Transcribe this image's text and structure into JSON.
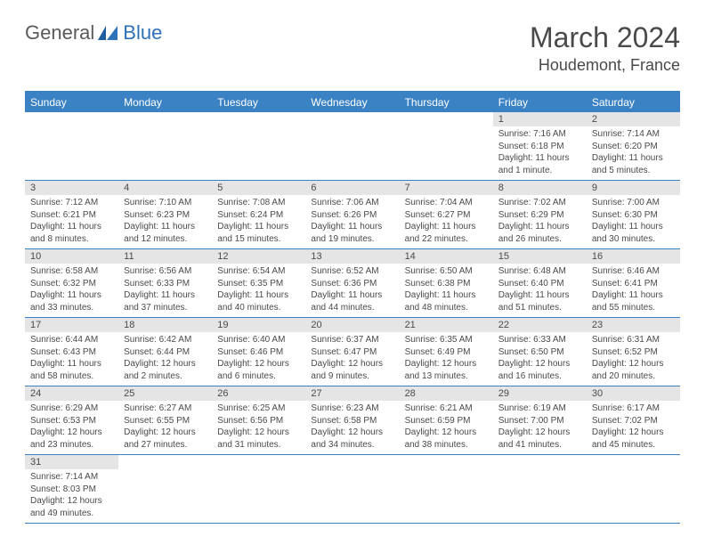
{
  "logo": {
    "general": "General",
    "blue": "Blue"
  },
  "title": "March 2024",
  "location": "Houdemont, France",
  "colors": {
    "header_bg": "#3b82c4",
    "header_text": "#ffffff",
    "daynum_bg": "#e5e5e5",
    "border": "#3b82c4",
    "text": "#4a4a4a"
  },
  "daysOfWeek": [
    "Sunday",
    "Monday",
    "Tuesday",
    "Wednesday",
    "Thursday",
    "Friday",
    "Saturday"
  ],
  "weeks": [
    [
      null,
      null,
      null,
      null,
      null,
      {
        "n": "1",
        "sr": "7:16 AM",
        "ss": "6:18 PM",
        "dl": "11 hours and 1 minute."
      },
      {
        "n": "2",
        "sr": "7:14 AM",
        "ss": "6:20 PM",
        "dl": "11 hours and 5 minutes."
      }
    ],
    [
      {
        "n": "3",
        "sr": "7:12 AM",
        "ss": "6:21 PM",
        "dl": "11 hours and 8 minutes."
      },
      {
        "n": "4",
        "sr": "7:10 AM",
        "ss": "6:23 PM",
        "dl": "11 hours and 12 minutes."
      },
      {
        "n": "5",
        "sr": "7:08 AM",
        "ss": "6:24 PM",
        "dl": "11 hours and 15 minutes."
      },
      {
        "n": "6",
        "sr": "7:06 AM",
        "ss": "6:26 PM",
        "dl": "11 hours and 19 minutes."
      },
      {
        "n": "7",
        "sr": "7:04 AM",
        "ss": "6:27 PM",
        "dl": "11 hours and 22 minutes."
      },
      {
        "n": "8",
        "sr": "7:02 AM",
        "ss": "6:29 PM",
        "dl": "11 hours and 26 minutes."
      },
      {
        "n": "9",
        "sr": "7:00 AM",
        "ss": "6:30 PM",
        "dl": "11 hours and 30 minutes."
      }
    ],
    [
      {
        "n": "10",
        "sr": "6:58 AM",
        "ss": "6:32 PM",
        "dl": "11 hours and 33 minutes."
      },
      {
        "n": "11",
        "sr": "6:56 AM",
        "ss": "6:33 PM",
        "dl": "11 hours and 37 minutes."
      },
      {
        "n": "12",
        "sr": "6:54 AM",
        "ss": "6:35 PM",
        "dl": "11 hours and 40 minutes."
      },
      {
        "n": "13",
        "sr": "6:52 AM",
        "ss": "6:36 PM",
        "dl": "11 hours and 44 minutes."
      },
      {
        "n": "14",
        "sr": "6:50 AM",
        "ss": "6:38 PM",
        "dl": "11 hours and 48 minutes."
      },
      {
        "n": "15",
        "sr": "6:48 AM",
        "ss": "6:40 PM",
        "dl": "11 hours and 51 minutes."
      },
      {
        "n": "16",
        "sr": "6:46 AM",
        "ss": "6:41 PM",
        "dl": "11 hours and 55 minutes."
      }
    ],
    [
      {
        "n": "17",
        "sr": "6:44 AM",
        "ss": "6:43 PM",
        "dl": "11 hours and 58 minutes."
      },
      {
        "n": "18",
        "sr": "6:42 AM",
        "ss": "6:44 PM",
        "dl": "12 hours and 2 minutes."
      },
      {
        "n": "19",
        "sr": "6:40 AM",
        "ss": "6:46 PM",
        "dl": "12 hours and 6 minutes."
      },
      {
        "n": "20",
        "sr": "6:37 AM",
        "ss": "6:47 PM",
        "dl": "12 hours and 9 minutes."
      },
      {
        "n": "21",
        "sr": "6:35 AM",
        "ss": "6:49 PM",
        "dl": "12 hours and 13 minutes."
      },
      {
        "n": "22",
        "sr": "6:33 AM",
        "ss": "6:50 PM",
        "dl": "12 hours and 16 minutes."
      },
      {
        "n": "23",
        "sr": "6:31 AM",
        "ss": "6:52 PM",
        "dl": "12 hours and 20 minutes."
      }
    ],
    [
      {
        "n": "24",
        "sr": "6:29 AM",
        "ss": "6:53 PM",
        "dl": "12 hours and 23 minutes."
      },
      {
        "n": "25",
        "sr": "6:27 AM",
        "ss": "6:55 PM",
        "dl": "12 hours and 27 minutes."
      },
      {
        "n": "26",
        "sr": "6:25 AM",
        "ss": "6:56 PM",
        "dl": "12 hours and 31 minutes."
      },
      {
        "n": "27",
        "sr": "6:23 AM",
        "ss": "6:58 PM",
        "dl": "12 hours and 34 minutes."
      },
      {
        "n": "28",
        "sr": "6:21 AM",
        "ss": "6:59 PM",
        "dl": "12 hours and 38 minutes."
      },
      {
        "n": "29",
        "sr": "6:19 AM",
        "ss": "7:00 PM",
        "dl": "12 hours and 41 minutes."
      },
      {
        "n": "30",
        "sr": "6:17 AM",
        "ss": "7:02 PM",
        "dl": "12 hours and 45 minutes."
      }
    ],
    [
      {
        "n": "31",
        "sr": "7:14 AM",
        "ss": "8:03 PM",
        "dl": "12 hours and 49 minutes."
      },
      null,
      null,
      null,
      null,
      null,
      null
    ]
  ]
}
